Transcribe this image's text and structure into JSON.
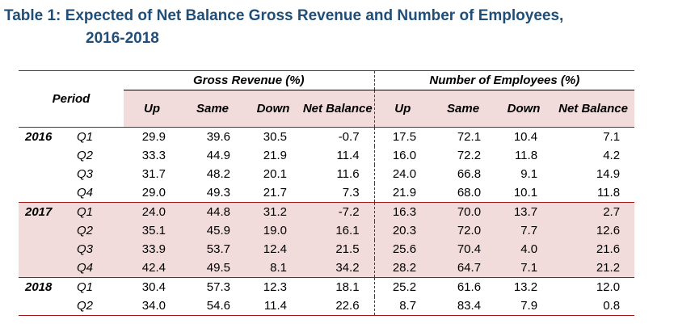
{
  "title": {
    "line1": "Table 1: Expected of Net Balance Gross Revenue and Number of Employees,",
    "line2": "2016-2018"
  },
  "table": {
    "period_label": "Period",
    "group_gross": "Gross Revenue (%)",
    "group_employees": "Number of Employees (%)",
    "col_up": "Up",
    "col_same": "Same",
    "col_down": "Down",
    "col_net": "Net Balance",
    "rows": [
      {
        "year": "2016",
        "q": "Q1",
        "v": [
          "29.9",
          "39.6",
          "30.5",
          "-0.7",
          "17.5",
          "72.1",
          "10.4",
          "7.1"
        ]
      },
      {
        "year": "",
        "q": "Q2",
        "v": [
          "33.3",
          "44.9",
          "21.9",
          "11.4",
          "16.0",
          "72.2",
          "11.8",
          "4.2"
        ]
      },
      {
        "year": "",
        "q": "Q3",
        "v": [
          "31.7",
          "48.2",
          "20.1",
          "11.6",
          "24.0",
          "66.8",
          "9.1",
          "14.9"
        ]
      },
      {
        "year": "",
        "q": "Q4",
        "v": [
          "29.0",
          "49.3",
          "21.7",
          "7.3",
          "21.9",
          "68.0",
          "10.1",
          "11.8"
        ]
      },
      {
        "year": "2017",
        "q": "Q1",
        "v": [
          "24.0",
          "44.8",
          "31.2",
          "-7.2",
          "16.3",
          "70.0",
          "13.7",
          "2.7"
        ]
      },
      {
        "year": "",
        "q": "Q2",
        "v": [
          "35.1",
          "45.9",
          "19.0",
          "16.1",
          "20.3",
          "72.0",
          "7.7",
          "12.6"
        ]
      },
      {
        "year": "",
        "q": "Q3",
        "v": [
          "33.9",
          "53.7",
          "12.4",
          "21.5",
          "25.6",
          "70.4",
          "4.0",
          "21.6"
        ]
      },
      {
        "year": "",
        "q": "Q4",
        "v": [
          "42.4",
          "49.5",
          "8.1",
          "34.2",
          "28.2",
          "64.7",
          "7.1",
          "21.2"
        ]
      },
      {
        "year": "2018",
        "q": "Q1",
        "v": [
          "30.4",
          "57.3",
          "12.3",
          "18.1",
          "25.2",
          "61.6",
          "13.2",
          "12.0"
        ]
      },
      {
        "year": "",
        "q": "Q2",
        "v": [
          "34.0",
          "54.6",
          "11.4",
          "22.6",
          "8.7",
          "83.4",
          "7.9",
          "0.8"
        ]
      }
    ]
  }
}
